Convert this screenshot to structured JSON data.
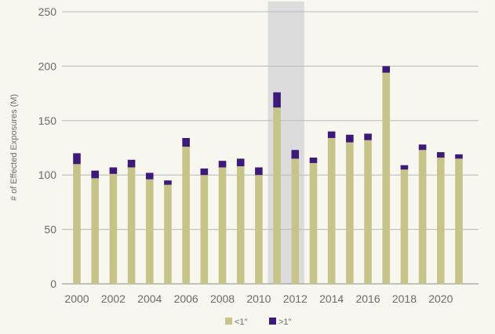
{
  "chart_data": {
    "type": "bar",
    "stacked": true,
    "title": "",
    "xlabel": "",
    "ylabel": "# of Effected Exposures (M)",
    "ylim": [
      0,
      250
    ],
    "yticks": [
      0,
      50,
      100,
      150,
      200,
      250
    ],
    "grid": "horizontal",
    "legend_placement": "bottom-center",
    "categories": [
      "2000",
      "2001",
      "2002",
      "2003",
      "2004",
      "2005",
      "2006",
      "2007",
      "2008",
      "2009",
      "2010",
      "2011",
      "2012",
      "2013",
      "2014",
      "2015",
      "2016",
      "2017",
      "2018",
      "2019",
      "2020",
      "2021"
    ],
    "xtick_labels": [
      "2000",
      "2002",
      "2004",
      "2006",
      "2008",
      "2010",
      "2012",
      "2014",
      "2016",
      "2018",
      "2020"
    ],
    "highlight": {
      "from": "2011",
      "to": "2012"
    },
    "series": [
      {
        "name": "<1\"",
        "color": "#c7c48a",
        "values": [
          110,
          97,
          101,
          107,
          96,
          91,
          126,
          100,
          107,
          108,
          100,
          162,
          115,
          111,
          134,
          130,
          132,
          194,
          105,
          123,
          116,
          115
        ]
      },
      {
        "name": ">1\"",
        "color": "#3d1a78",
        "values": [
          10,
          7,
          6,
          7,
          6,
          4,
          8,
          6,
          6,
          7,
          7,
          14,
          8,
          5,
          6,
          7,
          6,
          6,
          4,
          5,
          5,
          4
        ]
      }
    ]
  }
}
